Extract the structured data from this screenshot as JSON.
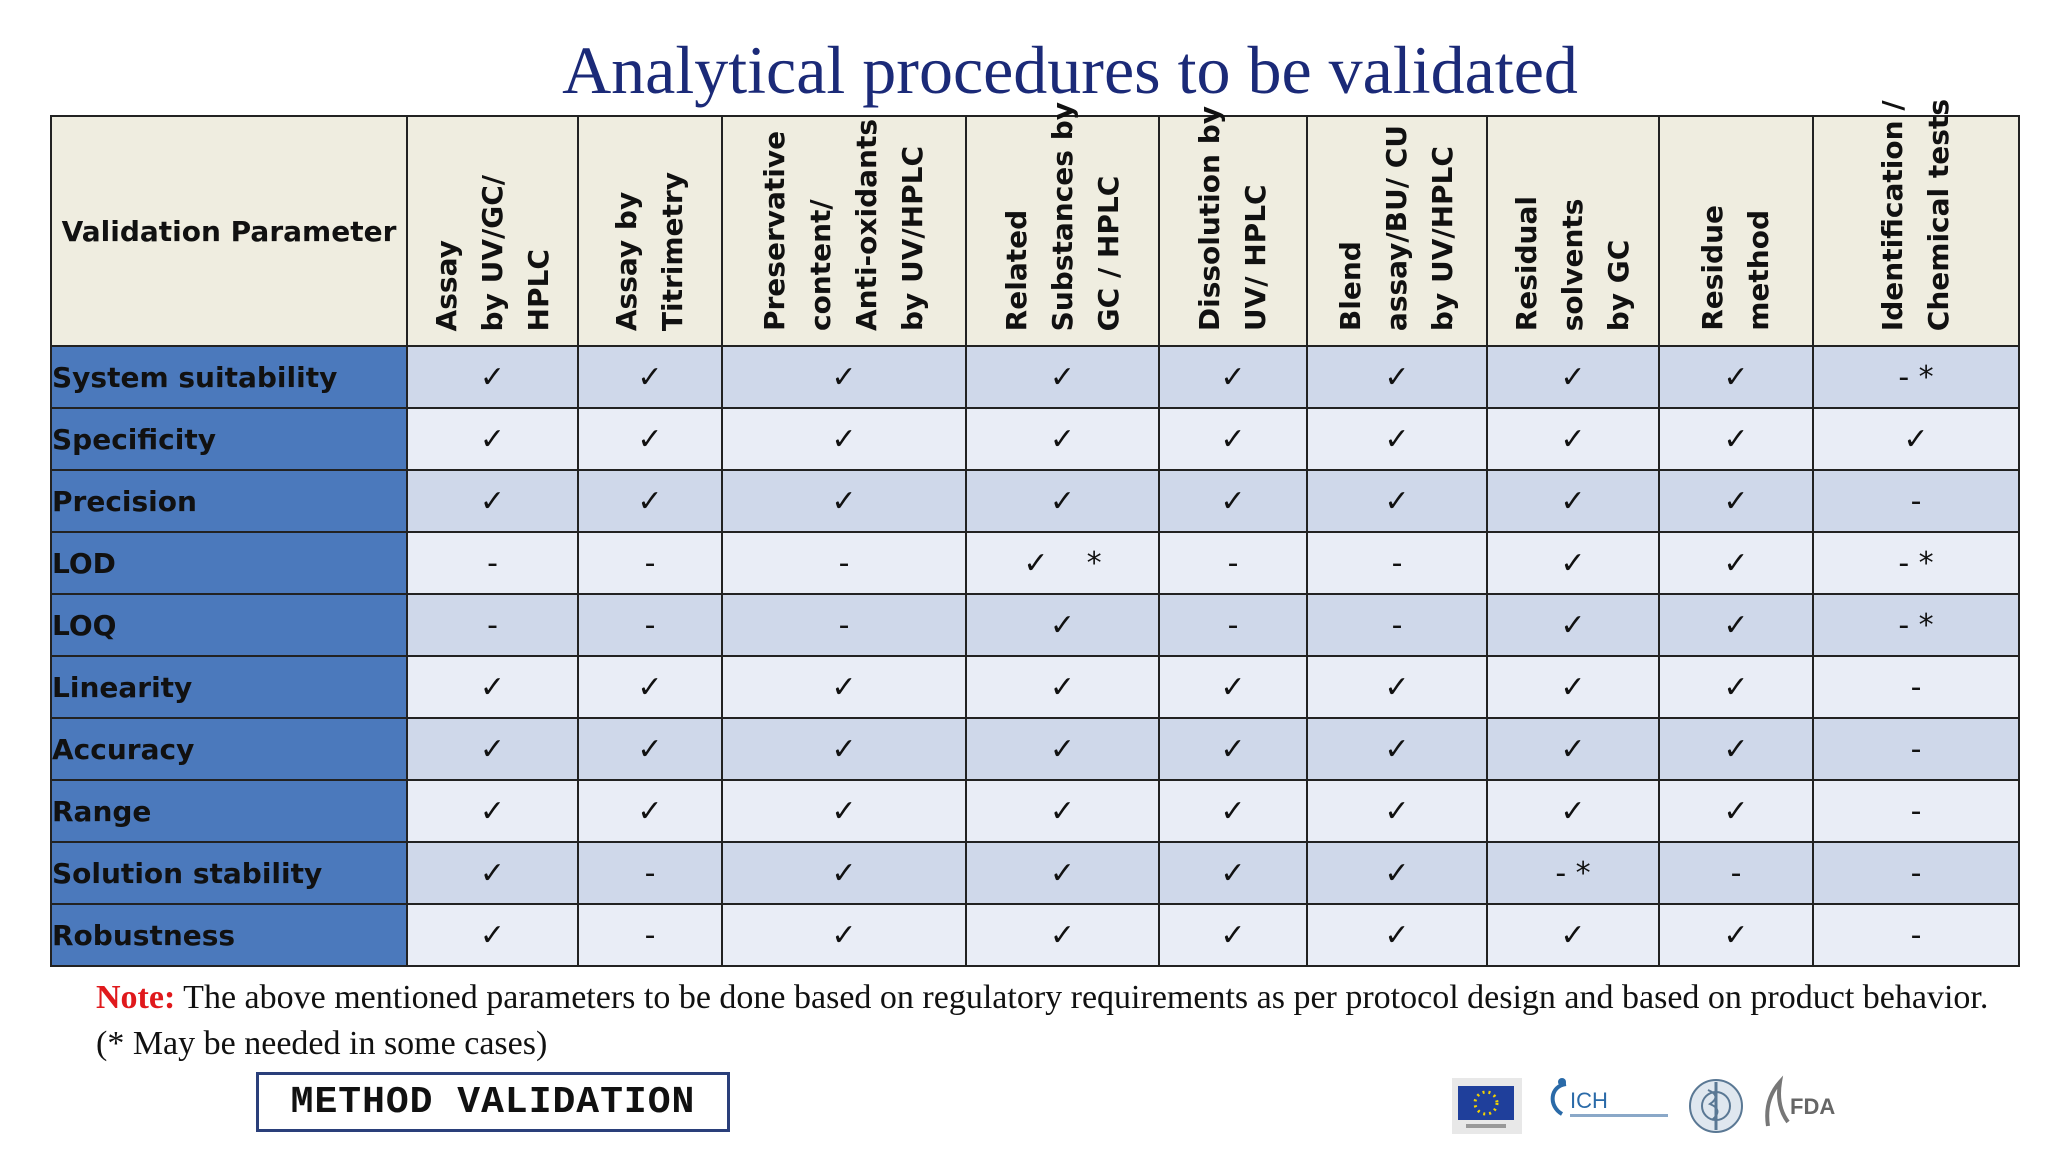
{
  "title": "Analytical procedures to be validated",
  "table": {
    "param_header": "Validation Parameter",
    "columns": [
      "Assay\nby UV/GC/\nHPLC",
      "Assay by\nTitrimetry",
      "Preservative\ncontent/\nAnti-oxidants\nby UV/HPLC",
      "Related\nSubstances by\nGC / HPLC",
      "Dissolution by\nUV/ HPLC",
      "Blend\nassay/BU/ CU\nby UV/HPLC",
      "Residual\nsolvents\nby GC",
      "Residue\nmethod",
      "Identification /\nChemical tests"
    ],
    "rows": [
      {
        "label": "System suitability",
        "cells": [
          "✓",
          "✓",
          "✓",
          "✓",
          "✓",
          "✓",
          "✓",
          "✓",
          "- *"
        ]
      },
      {
        "label": "Specificity",
        "cells": [
          "✓",
          "✓",
          "✓",
          "✓",
          "✓",
          "✓",
          "✓",
          "✓",
          "✓"
        ]
      },
      {
        "label": "Precision",
        "cells": [
          "✓",
          "✓",
          "✓",
          "✓",
          "✓",
          "✓",
          "✓",
          "✓",
          "-"
        ]
      },
      {
        "label": "LOD",
        "cells": [
          "-",
          "-",
          "-",
          "✓    *",
          "-",
          "-",
          "✓",
          "✓",
          "- *"
        ]
      },
      {
        "label": "LOQ",
        "cells": [
          "-",
          "-",
          "-",
          "✓",
          "-",
          "-",
          "✓",
          "✓",
          "- *"
        ]
      },
      {
        "label": "Linearity",
        "cells": [
          "✓",
          "✓",
          "✓",
          "✓",
          "✓",
          "✓",
          "✓",
          "✓",
          "-"
        ]
      },
      {
        "label": "Accuracy",
        "cells": [
          "✓",
          "✓",
          "✓",
          "✓",
          "✓",
          "✓",
          "✓",
          "✓",
          "-"
        ]
      },
      {
        "label": "Range",
        "cells": [
          "✓",
          "✓",
          "✓",
          "✓",
          "✓",
          "✓",
          "✓",
          "✓",
          "-"
        ]
      },
      {
        "label": "Solution stability",
        "cells": [
          "✓",
          "-",
          "✓",
          "✓",
          "✓",
          "✓",
          "- *",
          "-",
          "-"
        ]
      },
      {
        "label": "Robustness",
        "cells": [
          "✓",
          "-",
          "✓",
          "✓",
          "✓",
          "✓",
          "✓",
          "✓",
          "-"
        ]
      }
    ]
  },
  "note": {
    "label": "Note:",
    "text": " The above mentioned parameters to be done based on regulatory requirements as per protocol  design and based on product behavior. (* May be needed in some cases)"
  },
  "footer_label": "METHOD VALIDATION",
  "logos": {
    "icons": [
      "eu-flag-icon",
      "ich-logo-icon",
      "who-emblem-icon",
      "fda-logo-icon"
    ],
    "ich_text": "ICH",
    "fda_text": "FDA"
  }
}
